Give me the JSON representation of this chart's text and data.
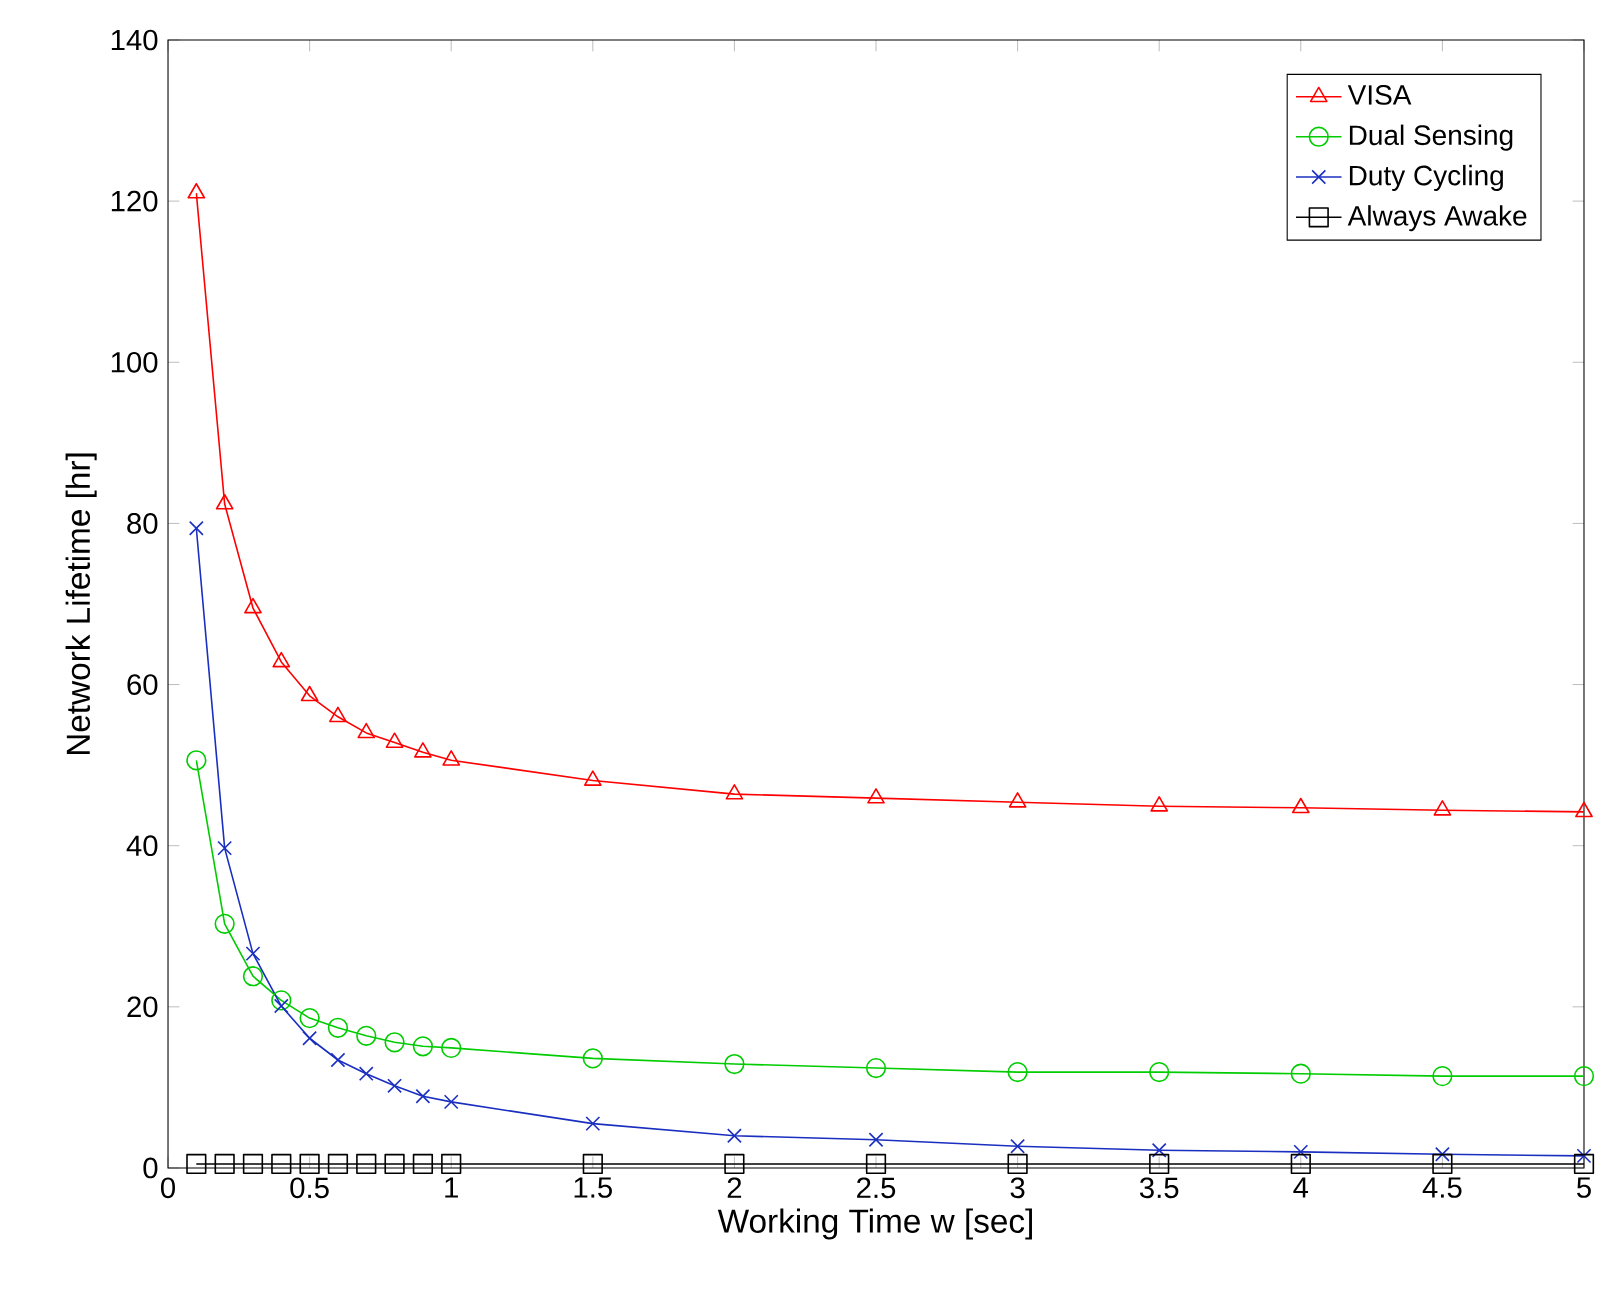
{
  "chart_data": {
    "type": "line",
    "xlabel": "Working Time w [sec]",
    "ylabel": "Network Lifetime [hr]",
    "x": [
      0.1,
      0.2,
      0.3,
      0.4,
      0.5,
      0.6,
      0.7,
      0.8,
      0.9,
      1,
      1.5,
      2,
      2.5,
      3,
      3.5,
      4,
      4.5,
      5
    ],
    "series": [
      {
        "name": "VISA",
        "color": "#ff0000",
        "marker": "triangle",
        "values": [
          121,
          82.4,
          69.5,
          62.8,
          58.6,
          56,
          54,
          52.8,
          51.6,
          50.6,
          48.1,
          46.4,
          45.9,
          45.4,
          44.9,
          44.7,
          44.4,
          44.2
        ]
      },
      {
        "name": "Dual Sensing",
        "color": "#00cc00",
        "marker": "circle",
        "values": [
          50.6,
          30.3,
          23.8,
          20.8,
          18.6,
          17.4,
          16.4,
          15.6,
          15.1,
          14.9,
          13.6,
          12.9,
          12.4,
          11.9,
          11.9,
          11.7,
          11.4,
          11.4
        ]
      },
      {
        "name": "Duty Cycling",
        "color": "#1a2fc0",
        "marker": "cross",
        "values": [
          79.4,
          39.7,
          26.6,
          20.1,
          16.1,
          13.4,
          11.7,
          10.2,
          8.9,
          8.2,
          5.5,
          4.0,
          3.5,
          2.7,
          2.2,
          2.0,
          1.7,
          1.5
        ]
      },
      {
        "name": "Always Awake",
        "color": "#000000",
        "marker": "square",
        "values": [
          0.5,
          0.5,
          0.5,
          0.5,
          0.5,
          0.5,
          0.5,
          0.5,
          0.5,
          0.5,
          0.5,
          0.5,
          0.5,
          0.5,
          0.5,
          0.5,
          0.5,
          0.5
        ]
      }
    ],
    "xlim": [
      0,
      5
    ],
    "ylim": [
      0,
      140
    ],
    "xticks": [
      0,
      0.5,
      1,
      1.5,
      2,
      2.5,
      3,
      3.5,
      4,
      4.5,
      5
    ],
    "yticks": [
      0,
      20,
      40,
      60,
      80,
      100,
      120,
      140
    ],
    "grid": false,
    "legend": "top right",
    "line_style": "solid"
  }
}
